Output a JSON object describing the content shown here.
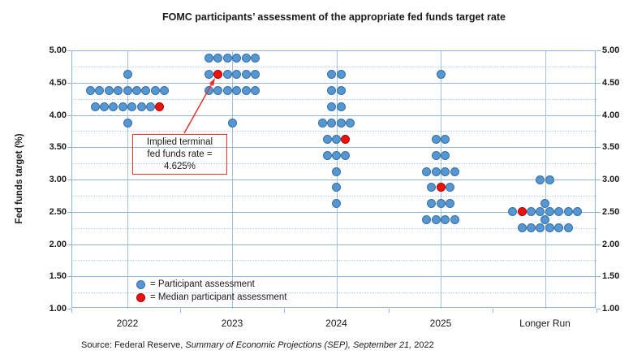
{
  "title": "FOMC participants’ assessment of the appropriate fed funds target rate",
  "y_axis_title": "Fed funds target (%)",
  "legend": {
    "participant": "= Participant assessment",
    "median": "= Median participant assessment"
  },
  "annotation": {
    "line1": "Implied terminal",
    "line2": "fed funds rate =",
    "line3": "4.625%"
  },
  "source": {
    "prefix": "Source: Federal Reserve, ",
    "italic": "Summary of Economic Projections (SEP), September 21,",
    "suffix": " 2022"
  },
  "colors": {
    "dot-blue": "#5596d4",
    "dot-blue-border": "#38709f",
    "dot-red": "#ee1111",
    "dot-red-border": "#aa0000",
    "grid-major": "#92b5d9",
    "grid-minor": "#b5d0ea",
    "grid-vert": "#a3c2e2",
    "frame": "#8eb4dc",
    "annot-red": "#e8322e"
  },
  "chart_data": {
    "type": "scatter",
    "title": "FOMC participants’ assessment of the appropriate fed funds target rate",
    "xlabel": "",
    "ylabel": "Fed funds target (%)",
    "ylim": [
      1.0,
      5.0
    ],
    "ytick_major_step": 0.5,
    "ytick_minor_step": 0.25,
    "grid": "horizontal major solid, minor dotted, vertical line per category",
    "legend_position": "inside bottom-left",
    "categories": [
      "2022",
      "2023",
      "2024",
      "2025",
      "Longer Run"
    ],
    "series": [
      {
        "name": "Participant assessment",
        "color": "#5596d4"
      },
      {
        "name": "Median participant assessment",
        "color": "#ee1111"
      }
    ],
    "columns": [
      {
        "label": "2022",
        "rows": [
          {
            "rate": 4.625,
            "count": 1
          },
          {
            "rate": 4.375,
            "count": 9
          },
          {
            "rate": 4.125,
            "count": 8,
            "median_index": 7
          },
          {
            "rate": 3.875,
            "count": 1
          }
        ]
      },
      {
        "label": "2023",
        "rows": [
          {
            "rate": 4.875,
            "count": 6
          },
          {
            "rate": 4.625,
            "count": 6,
            "median_index": 1
          },
          {
            "rate": 4.375,
            "count": 6
          },
          {
            "rate": 3.875,
            "count": 1
          }
        ]
      },
      {
        "label": "2024",
        "rows": [
          {
            "rate": 4.625,
            "count": 2
          },
          {
            "rate": 4.375,
            "count": 2
          },
          {
            "rate": 4.125,
            "count": 2
          },
          {
            "rate": 3.875,
            "count": 4
          },
          {
            "rate": 3.625,
            "count": 3,
            "median_index": 2
          },
          {
            "rate": 3.375,
            "count": 3
          },
          {
            "rate": 3.125,
            "count": 1
          },
          {
            "rate": 2.875,
            "count": 1
          },
          {
            "rate": 2.625,
            "count": 1
          }
        ]
      },
      {
        "label": "2025",
        "rows": [
          {
            "rate": 4.625,
            "count": 1
          },
          {
            "rate": 3.625,
            "count": 2
          },
          {
            "rate": 3.375,
            "count": 2
          },
          {
            "rate": 3.125,
            "count": 4
          },
          {
            "rate": 2.875,
            "count": 3,
            "median_index": 1
          },
          {
            "rate": 2.625,
            "count": 3
          },
          {
            "rate": 2.375,
            "count": 4
          }
        ]
      },
      {
        "label": "Longer Run",
        "rows": [
          {
            "rate": 3.0,
            "count": 2
          },
          {
            "rate": 2.625,
            "count": 1
          },
          {
            "rate": 2.5,
            "count": 8,
            "median_index": 1
          },
          {
            "rate": 2.375,
            "count": 1
          },
          {
            "rate": 2.25,
            "count": 6
          }
        ]
      }
    ]
  }
}
